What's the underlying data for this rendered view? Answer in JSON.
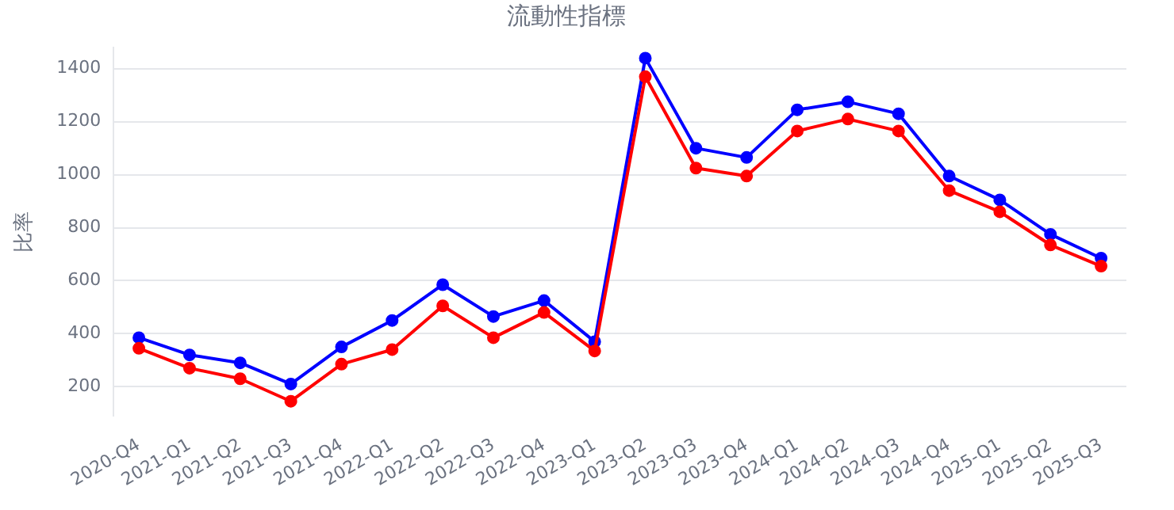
{
  "chart_data": {
    "type": "line",
    "title": "流動性指標",
    "ylabel": "比率",
    "categories": [
      "2020-Q4",
      "2021-Q1",
      "2021-Q2",
      "2021-Q3",
      "2021-Q4",
      "2022-Q1",
      "2022-Q2",
      "2022-Q3",
      "2022-Q4",
      "2023-Q1",
      "2023-Q2",
      "2023-Q3",
      "2023-Q4",
      "2024-Q1",
      "2024-Q2",
      "2024-Q3",
      "2024-Q4",
      "2025-Q1",
      "2025-Q2",
      "2025-Q3"
    ],
    "series": [
      {
        "color": "#0000ff",
        "values": [
          385,
          320,
          290,
          210,
          350,
          450,
          585,
          465,
          525,
          370,
          1440,
          1100,
          1065,
          1245,
          1275,
          1230,
          995,
          905,
          775,
          685
        ]
      },
      {
        "color": "#ff0000",
        "values": [
          345,
          270,
          230,
          145,
          285,
          340,
          505,
          385,
          480,
          335,
          1370,
          1025,
          995,
          1165,
          1210,
          1165,
          940,
          860,
          735,
          655
        ]
      }
    ],
    "ylim": [
      90,
      1480
    ],
    "yticks": [
      200,
      400,
      600,
      800,
      1000,
      1200,
      1400
    ],
    "grid": "y",
    "legend": false,
    "marker": "circle",
    "line_style": "solid"
  }
}
